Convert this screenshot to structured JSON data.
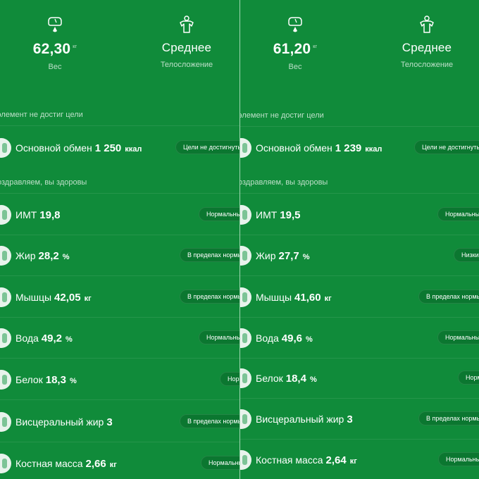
{
  "panels": [
    {
      "weight_value": "62,30",
      "weight_unit": "кг",
      "weight_label": "Вес",
      "body_type_value": "Среднее",
      "body_type_label": "Телосложение",
      "section_not_reached": "элемент не достиг цели",
      "section_healthy": "оздравляем, вы здоровы",
      "metrics": [
        {
          "name": "Основной обмен",
          "value": "1 250",
          "unit": "ккал",
          "status": "Цели не достигнуты"
        },
        {
          "name": "ИМТ",
          "value": "19,8",
          "unit": "",
          "status": "Нормальный"
        },
        {
          "name": "Жир",
          "value": "28,2",
          "unit": "%",
          "status": "В пределах нормы"
        },
        {
          "name": "Мышцы",
          "value": "42,05",
          "unit": "кг",
          "status": "В пределах нормы"
        },
        {
          "name": "Вода",
          "value": "49,2",
          "unit": "%",
          "status": "Нормальный"
        },
        {
          "name": "Белок",
          "value": "18,3",
          "unit": "%",
          "status": "Норма"
        },
        {
          "name": "Висцеральный жир",
          "value": "3",
          "unit": "",
          "status": "В пределах нормы"
        },
        {
          "name": "Костная масса",
          "value": "2,66",
          "unit": "кг",
          "status": "Нормальный"
        }
      ]
    },
    {
      "weight_value": "61,20",
      "weight_unit": "кг",
      "weight_label": "Вес",
      "body_type_value": "Среднее",
      "body_type_label": "Телосложение",
      "section_not_reached": "элемент не достиг цели",
      "section_healthy": "оздравляем, вы здоровы",
      "metrics": [
        {
          "name": "Основной обмен",
          "value": "1 239",
          "unit": "ккал",
          "status": "Цели не достигнуты"
        },
        {
          "name": "ИМТ",
          "value": "19,5",
          "unit": "",
          "status": "Нормальный"
        },
        {
          "name": "Жир",
          "value": "27,7",
          "unit": "%",
          "status": "Низкий"
        },
        {
          "name": "Мышцы",
          "value": "41,60",
          "unit": "кг",
          "status": "В пределах нормы"
        },
        {
          "name": "Вода",
          "value": "49,6",
          "unit": "%",
          "status": "Нормальный"
        },
        {
          "name": "Белок",
          "value": "18,4",
          "unit": "%",
          "status": "Норма"
        },
        {
          "name": "Висцеральный жир",
          "value": "3",
          "unit": "",
          "status": "В пределах нормы"
        },
        {
          "name": "Костная масса",
          "value": "2,64",
          "unit": "кг",
          "status": "Нормальный"
        }
      ]
    }
  ],
  "colors": {
    "background": "#108b3a",
    "icon_bg": "#e8f3ec",
    "badge_bg": "#0a6b2c"
  }
}
